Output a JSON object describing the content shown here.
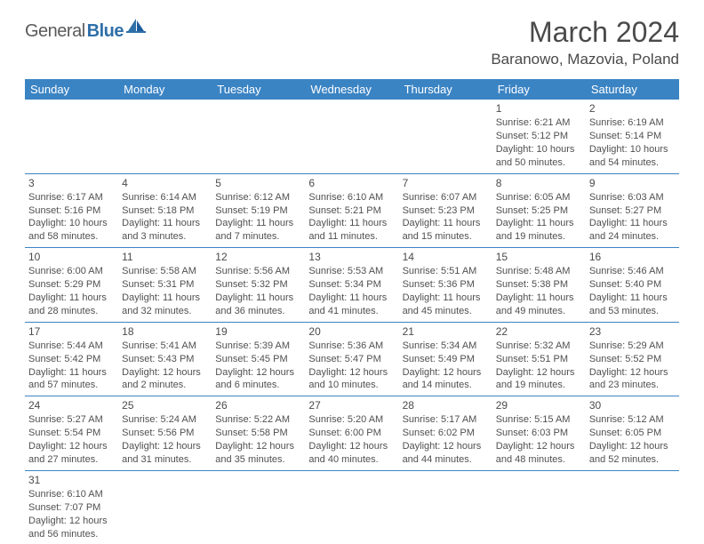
{
  "brand": {
    "part1": "General",
    "part2": "Blue"
  },
  "title": "March 2024",
  "location": "Baranowo, Mazovia, Poland",
  "colors": {
    "header_bg": "#3b84c4",
    "header_text": "#ffffff",
    "border": "#3b84c4",
    "text": "#505050",
    "brand_accent": "#2f6fa8"
  },
  "weekdays": [
    "Sunday",
    "Monday",
    "Tuesday",
    "Wednesday",
    "Thursday",
    "Friday",
    "Saturday"
  ],
  "weeks": [
    [
      null,
      null,
      null,
      null,
      null,
      {
        "n": "1",
        "sunrise": "6:21 AM",
        "sunset": "5:12 PM",
        "dl1": "10 hours",
        "dl2": "and 50 minutes."
      },
      {
        "n": "2",
        "sunrise": "6:19 AM",
        "sunset": "5:14 PM",
        "dl1": "10 hours",
        "dl2": "and 54 minutes."
      }
    ],
    [
      {
        "n": "3",
        "sunrise": "6:17 AM",
        "sunset": "5:16 PM",
        "dl1": "10 hours",
        "dl2": "and 58 minutes."
      },
      {
        "n": "4",
        "sunrise": "6:14 AM",
        "sunset": "5:18 PM",
        "dl1": "11 hours",
        "dl2": "and 3 minutes."
      },
      {
        "n": "5",
        "sunrise": "6:12 AM",
        "sunset": "5:19 PM",
        "dl1": "11 hours",
        "dl2": "and 7 minutes."
      },
      {
        "n": "6",
        "sunrise": "6:10 AM",
        "sunset": "5:21 PM",
        "dl1": "11 hours",
        "dl2": "and 11 minutes."
      },
      {
        "n": "7",
        "sunrise": "6:07 AM",
        "sunset": "5:23 PM",
        "dl1": "11 hours",
        "dl2": "and 15 minutes."
      },
      {
        "n": "8",
        "sunrise": "6:05 AM",
        "sunset": "5:25 PM",
        "dl1": "11 hours",
        "dl2": "and 19 minutes."
      },
      {
        "n": "9",
        "sunrise": "6:03 AM",
        "sunset": "5:27 PM",
        "dl1": "11 hours",
        "dl2": "and 24 minutes."
      }
    ],
    [
      {
        "n": "10",
        "sunrise": "6:00 AM",
        "sunset": "5:29 PM",
        "dl1": "11 hours",
        "dl2": "and 28 minutes."
      },
      {
        "n": "11",
        "sunrise": "5:58 AM",
        "sunset": "5:31 PM",
        "dl1": "11 hours",
        "dl2": "and 32 minutes."
      },
      {
        "n": "12",
        "sunrise": "5:56 AM",
        "sunset": "5:32 PM",
        "dl1": "11 hours",
        "dl2": "and 36 minutes."
      },
      {
        "n": "13",
        "sunrise": "5:53 AM",
        "sunset": "5:34 PM",
        "dl1": "11 hours",
        "dl2": "and 41 minutes."
      },
      {
        "n": "14",
        "sunrise": "5:51 AM",
        "sunset": "5:36 PM",
        "dl1": "11 hours",
        "dl2": "and 45 minutes."
      },
      {
        "n": "15",
        "sunrise": "5:48 AM",
        "sunset": "5:38 PM",
        "dl1": "11 hours",
        "dl2": "and 49 minutes."
      },
      {
        "n": "16",
        "sunrise": "5:46 AM",
        "sunset": "5:40 PM",
        "dl1": "11 hours",
        "dl2": "and 53 minutes."
      }
    ],
    [
      {
        "n": "17",
        "sunrise": "5:44 AM",
        "sunset": "5:42 PM",
        "dl1": "11 hours",
        "dl2": "and 57 minutes."
      },
      {
        "n": "18",
        "sunrise": "5:41 AM",
        "sunset": "5:43 PM",
        "dl1": "12 hours",
        "dl2": "and 2 minutes."
      },
      {
        "n": "19",
        "sunrise": "5:39 AM",
        "sunset": "5:45 PM",
        "dl1": "12 hours",
        "dl2": "and 6 minutes."
      },
      {
        "n": "20",
        "sunrise": "5:36 AM",
        "sunset": "5:47 PM",
        "dl1": "12 hours",
        "dl2": "and 10 minutes."
      },
      {
        "n": "21",
        "sunrise": "5:34 AM",
        "sunset": "5:49 PM",
        "dl1": "12 hours",
        "dl2": "and 14 minutes."
      },
      {
        "n": "22",
        "sunrise": "5:32 AM",
        "sunset": "5:51 PM",
        "dl1": "12 hours",
        "dl2": "and 19 minutes."
      },
      {
        "n": "23",
        "sunrise": "5:29 AM",
        "sunset": "5:52 PM",
        "dl1": "12 hours",
        "dl2": "and 23 minutes."
      }
    ],
    [
      {
        "n": "24",
        "sunrise": "5:27 AM",
        "sunset": "5:54 PM",
        "dl1": "12 hours",
        "dl2": "and 27 minutes."
      },
      {
        "n": "25",
        "sunrise": "5:24 AM",
        "sunset": "5:56 PM",
        "dl1": "12 hours",
        "dl2": "and 31 minutes."
      },
      {
        "n": "26",
        "sunrise": "5:22 AM",
        "sunset": "5:58 PM",
        "dl1": "12 hours",
        "dl2": "and 35 minutes."
      },
      {
        "n": "27",
        "sunrise": "5:20 AM",
        "sunset": "6:00 PM",
        "dl1": "12 hours",
        "dl2": "and 40 minutes."
      },
      {
        "n": "28",
        "sunrise": "5:17 AM",
        "sunset": "6:02 PM",
        "dl1": "12 hours",
        "dl2": "and 44 minutes."
      },
      {
        "n": "29",
        "sunrise": "5:15 AM",
        "sunset": "6:03 PM",
        "dl1": "12 hours",
        "dl2": "and 48 minutes."
      },
      {
        "n": "30",
        "sunrise": "5:12 AM",
        "sunset": "6:05 PM",
        "dl1": "12 hours",
        "dl2": "and 52 minutes."
      }
    ],
    [
      {
        "n": "31",
        "sunrise": "6:10 AM",
        "sunset": "7:07 PM",
        "dl1": "12 hours",
        "dl2": "and 56 minutes."
      },
      null,
      null,
      null,
      null,
      null,
      null
    ]
  ],
  "labels": {
    "sunrise": "Sunrise: ",
    "sunset": "Sunset: ",
    "daylight": "Daylight: "
  }
}
